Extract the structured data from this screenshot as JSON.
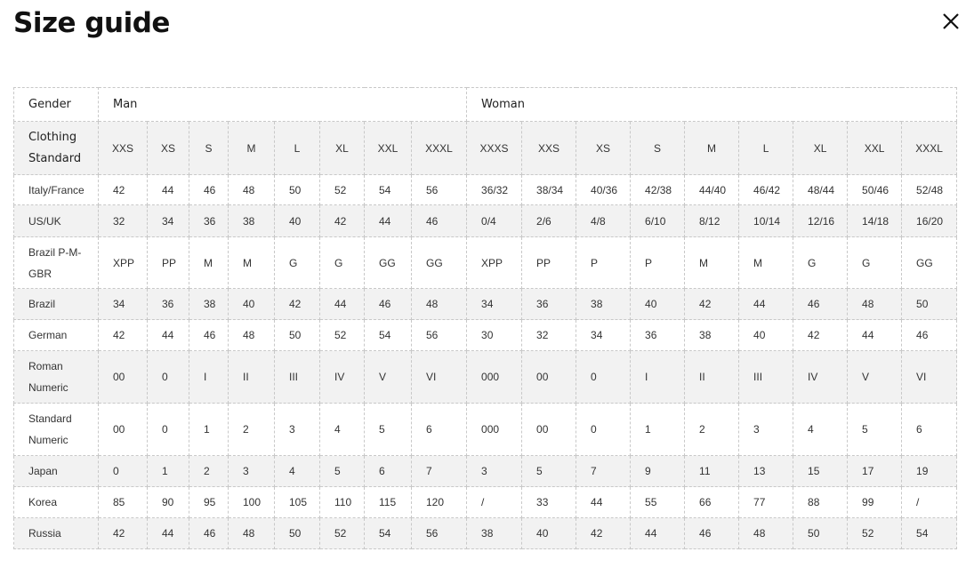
{
  "title": "Size guide",
  "close_icon": "close-icon",
  "colors": {
    "stripe": "#f2f2f2",
    "border": "#c8c8c8"
  },
  "header": {
    "gender_label": "Gender",
    "man": "Man",
    "woman": "Woman"
  },
  "sizes_row": {
    "label": "Clothing Standard",
    "man": [
      "XXS",
      "XS",
      "S",
      "M",
      "L",
      "XL",
      "XXL",
      "XXXL"
    ],
    "woman": [
      "XXXS",
      "XXS",
      "XS",
      "S",
      "M",
      "L",
      "XL",
      "XXL",
      "XXXL"
    ]
  },
  "rows": [
    {
      "label": "Italy/France",
      "man": [
        "42",
        "44",
        "46",
        "48",
        "50",
        "52",
        "54",
        "56"
      ],
      "woman": [
        "36/32",
        "38/34",
        "40/36",
        "42/38",
        "44/40",
        "46/42",
        "48/44",
        "50/46",
        "52/48"
      ]
    },
    {
      "label": "US/UK",
      "man": [
        "32",
        "34",
        "36",
        "38",
        "40",
        "42",
        "44",
        "46"
      ],
      "woman": [
        "0/4",
        "2/6",
        "4/8",
        "6/10",
        "8/12",
        "10/14",
        "12/16",
        "14/18",
        "16/20"
      ]
    },
    {
      "label": "Brazil P-M-GBR",
      "man": [
        "XPP",
        "PP",
        "M",
        "M",
        "G",
        "G",
        "GG",
        "GG"
      ],
      "woman": [
        "XPP",
        "PP",
        "P",
        "P",
        "M",
        "M",
        "G",
        "G",
        "GG"
      ]
    },
    {
      "label": "Brazil",
      "man": [
        "34",
        "36",
        "38",
        "40",
        "42",
        "44",
        "46",
        "48"
      ],
      "woman": [
        "34",
        "36",
        "38",
        "40",
        "42",
        "44",
        "46",
        "48",
        "50"
      ]
    },
    {
      "label": "German",
      "man": [
        "42",
        "44",
        "46",
        "48",
        "50",
        "52",
        "54",
        "56"
      ],
      "woman": [
        "30",
        "32",
        "34",
        "36",
        "38",
        "40",
        "42",
        "44",
        "46"
      ]
    },
    {
      "label": "Roman Numeric",
      "man": [
        "00",
        "0",
        "I",
        "II",
        "III",
        "IV",
        "V",
        "VI"
      ],
      "woman": [
        "000",
        "00",
        "0",
        "I",
        "II",
        "III",
        "IV",
        "V",
        "VI"
      ]
    },
    {
      "label": "Standard Numeric",
      "man": [
        "00",
        "0",
        "1",
        "2",
        "3",
        "4",
        "5",
        "6"
      ],
      "woman": [
        "000",
        "00",
        "0",
        "1",
        "2",
        "3",
        "4",
        "5",
        "6"
      ]
    },
    {
      "label": "Japan",
      "man": [
        "0",
        "1",
        "2",
        "3",
        "4",
        "5",
        "6",
        "7"
      ],
      "woman": [
        "3",
        "5",
        "7",
        "9",
        "11",
        "13",
        "15",
        "17",
        "19"
      ]
    },
    {
      "label": "Korea",
      "man": [
        "85",
        "90",
        "95",
        "100",
        "105",
        "110",
        "115",
        "120"
      ],
      "woman": [
        "/",
        "33",
        "44",
        "55",
        "66",
        "77",
        "88",
        "99",
        "/"
      ]
    },
    {
      "label": "Russia",
      "man": [
        "42",
        "44",
        "46",
        "48",
        "50",
        "52",
        "54",
        "56"
      ],
      "woman": [
        "38",
        "40",
        "42",
        "44",
        "46",
        "48",
        "50",
        "52",
        "54"
      ]
    }
  ]
}
